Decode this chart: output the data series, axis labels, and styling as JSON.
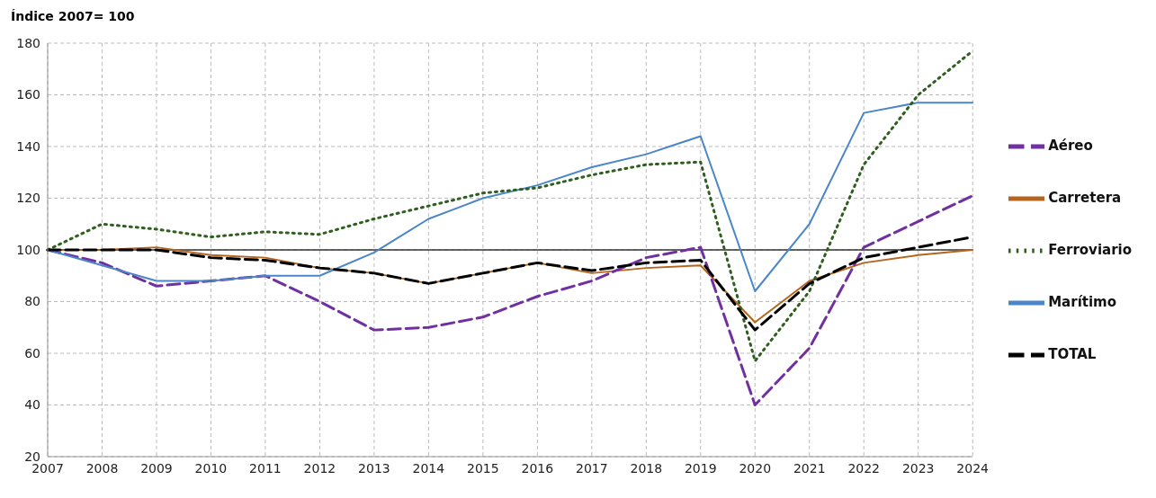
{
  "chart_data": {
    "type": "line",
    "ylabel": "Índice 2007= 100",
    "categories": [
      "2007",
      "2008",
      "2009",
      "2010",
      "2011",
      "2012",
      "2013",
      "2014",
      "2015",
      "2016",
      "2017",
      "2018",
      "2019",
      "2020",
      "2021",
      "2022",
      "2023",
      "2024"
    ],
    "series": [
      {
        "name": "Carretera",
        "color": "#b5651d",
        "line_style": "solid",
        "values": [
          100,
          100,
          101,
          98,
          97,
          93,
          91,
          87,
          91,
          95,
          91,
          93,
          94,
          72,
          88,
          95,
          98,
          100
        ]
      },
      {
        "name": "Aéreo",
        "color": "#7030a0",
        "line_style": "dashed",
        "values": [
          100,
          95,
          86,
          88,
          90,
          80,
          69,
          70,
          74,
          82,
          88,
          97,
          101,
          40,
          62,
          101,
          111,
          121
        ]
      },
      {
        "name": "Marítimo",
        "color": "#4a86c8",
        "line_style": "solid",
        "values": [
          100,
          94,
          88,
          88,
          90,
          90,
          99,
          112,
          120,
          125,
          132,
          137,
          144,
          84,
          110,
          153,
          157,
          157
        ]
      },
      {
        "name": "Ferroviario",
        "color": "#2f5f1f",
        "line_style": "dotted",
        "values": [
          100,
          110,
          108,
          105,
          107,
          106,
          112,
          117,
          122,
          124,
          129,
          133,
          134,
          57,
          84,
          133,
          160,
          177
        ]
      },
      {
        "name": "TOTAL",
        "color": "#000000",
        "line_style": "dashed",
        "values": [
          100,
          100,
          100,
          97,
          96,
          93,
          91,
          87,
          91,
          95,
          92,
          95,
          96,
          69,
          87,
          97,
          101,
          105
        ]
      }
    ],
    "ylim": [
      20,
      180
    ],
    "yticks": [
      20,
      40,
      60,
      80,
      100,
      120,
      140,
      160,
      180
    ],
    "ref_lines": [
      {
        "axis": "y",
        "value": 100,
        "color": "#333333"
      }
    ],
    "grid": true,
    "legend": "right",
    "marker": "none"
  }
}
